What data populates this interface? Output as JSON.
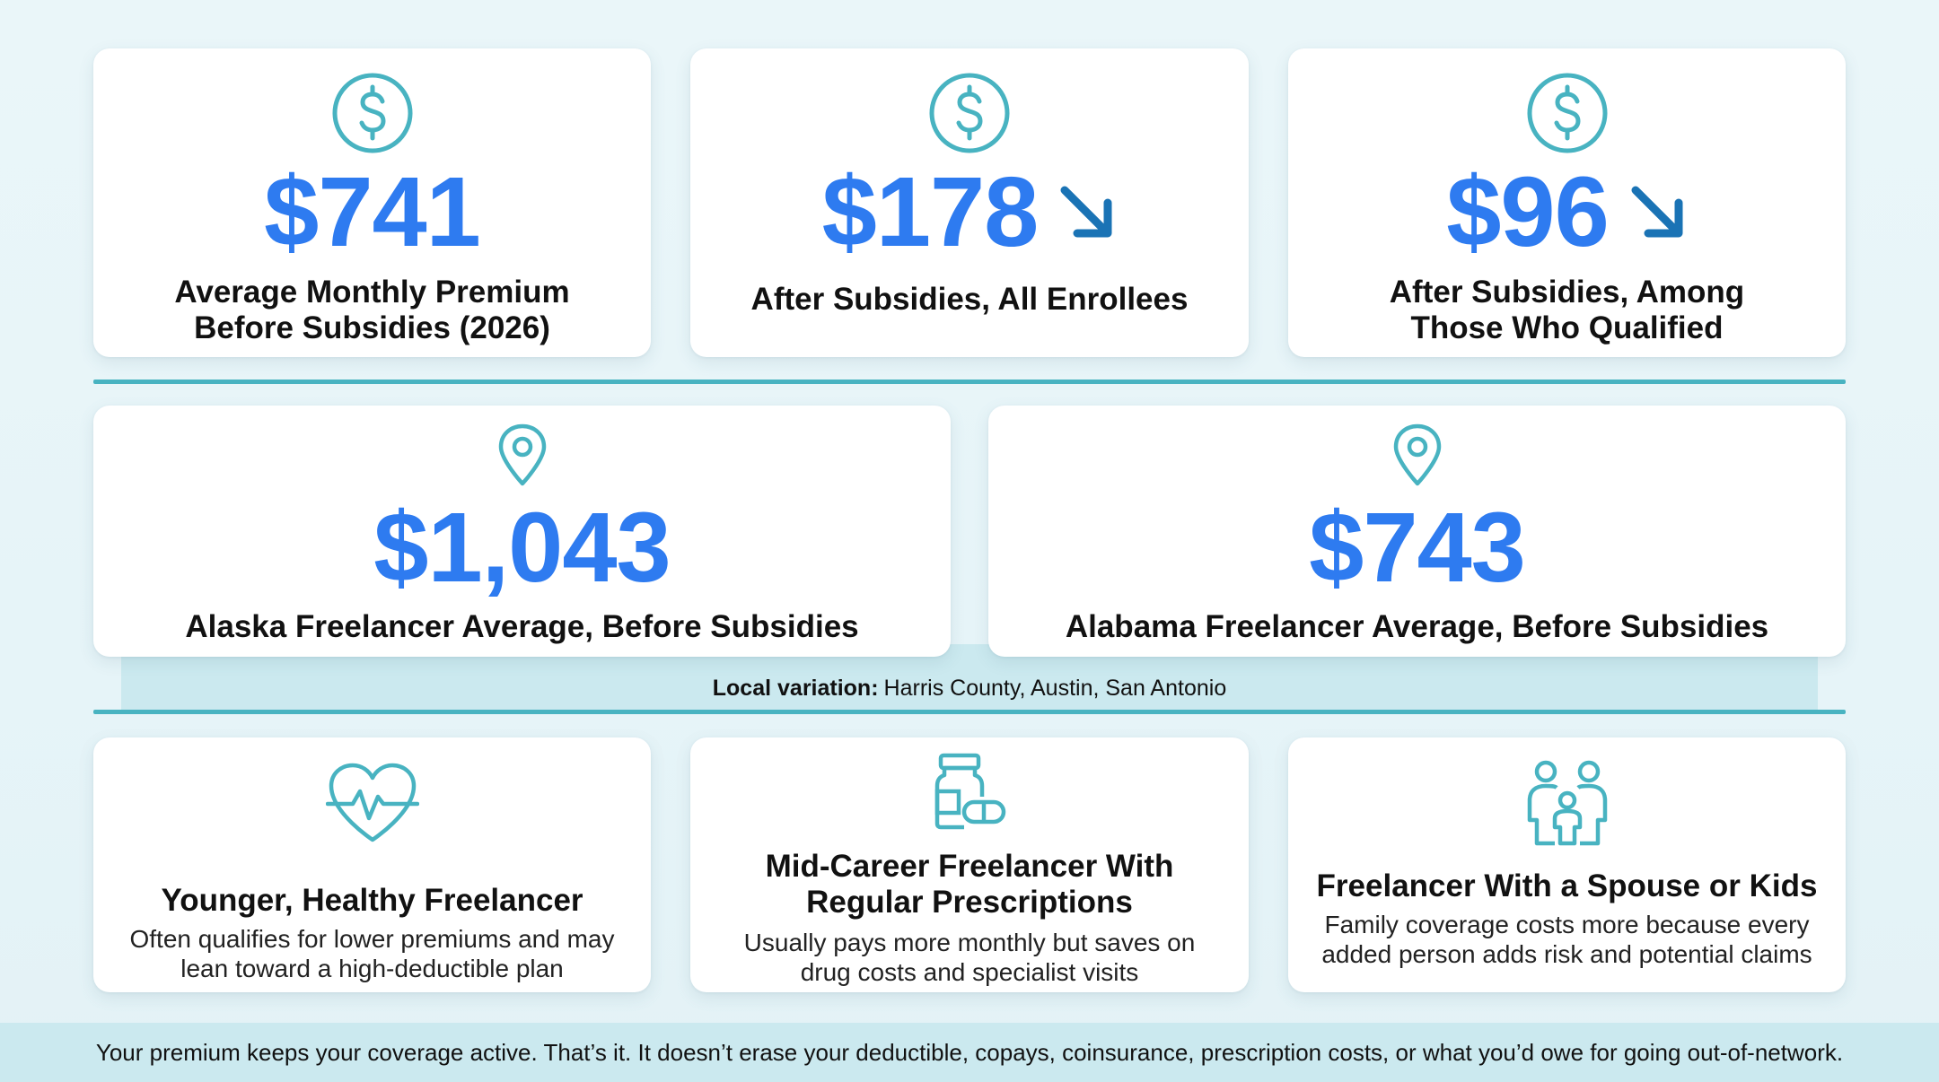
{
  "top_stats": [
    {
      "value": "$741",
      "label_line1": "Average Monthly Premium",
      "label_line2": "Before Subsidies (2026)",
      "icon": "dollar-circle-icon",
      "trend": "none"
    },
    {
      "value": "$178",
      "label_line1": "After Subsidies, All Enrollees",
      "label_line2": "",
      "icon": "dollar-circle-icon",
      "trend": "down"
    },
    {
      "value": "$96",
      "label_line1": "After Subsidies, Among",
      "label_line2": "Those Who Qualified",
      "icon": "dollar-circle-icon",
      "trend": "down"
    }
  ],
  "state_stats": [
    {
      "value": "$1,043",
      "label": "Alaska Freelancer Average, Before Subsidies",
      "icon": "location-pin-icon"
    },
    {
      "value": "$743",
      "label": "Alabama Freelancer Average, Before Subsidies",
      "icon": "location-pin-icon"
    }
  ],
  "local_variation": {
    "label": "Local variation:",
    "text": "Harris County, Austin, San Antonio"
  },
  "profiles": [
    {
      "title_line1": "Younger, Healthy Freelancer",
      "title_line2": "",
      "desc_line1": "Often qualifies for lower premiums and may",
      "desc_line2": "lean toward a high-deductible plan",
      "icon": "heart-pulse-icon"
    },
    {
      "title_line1": "Mid-Career Freelancer With",
      "title_line2": "Regular Prescriptions",
      "desc_line1": "Usually pays more monthly but saves on",
      "desc_line2": "drug costs and specialist visits",
      "icon": "pill-bottle-icon"
    },
    {
      "title_line1": "Freelancer With a Spouse or Kids",
      "title_line2": "",
      "desc_line1": "Family coverage costs more because every",
      "desc_line2": "added person adds risk and potential claims",
      "icon": "family-icon"
    }
  ],
  "footer": {
    "text": "Your premium keeps your coverage active. That’s it. It doesn’t erase your deductible, copays, coinsurance, prescription costs, or what you’d owe for going out-of-network."
  },
  "colors": {
    "accent_blue": "#2e7bf0",
    "teal": "#48b3c1",
    "arrow_blue": "#1a73b5",
    "band": "#cbe9ef"
  }
}
